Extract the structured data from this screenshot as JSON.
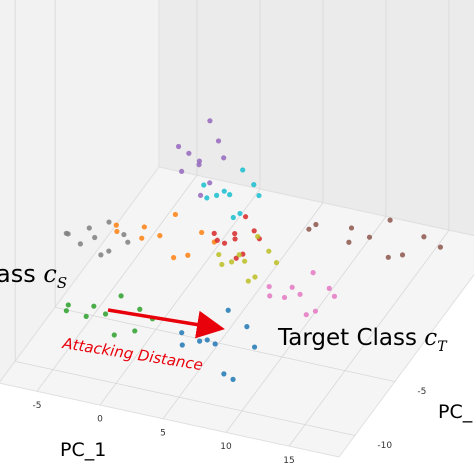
{
  "chart_data": {
    "type": "scatter3d",
    "xlabel": "PC_1",
    "ylabel": "PC_",
    "xlim": [
      -8,
      19
    ],
    "ylim": [
      -12,
      8
    ],
    "zlim": [
      0,
      10
    ],
    "xticks": [
      -5,
      0,
      5,
      10,
      15
    ],
    "yticks": [
      -10,
      -5
    ],
    "grid": true,
    "annotations": {
      "source_text": "ass",
      "source_symbol": "c",
      "source_sub": "S",
      "target_text": "Target Class",
      "target_symbol": "c",
      "target_sub": "T",
      "arrow_text": "Attacking Distance",
      "arrow_color": "#e8000b"
    },
    "series": [
      {
        "color": "#9467bd",
        "x": [
          -1,
          0.2,
          -2.4,
          -0.4,
          -1.6,
          0.8,
          -2.6,
          -0.8,
          -1.2,
          0.2
        ],
        "y": [
          2,
          2.5,
          1.6,
          1.2,
          2.9,
          2.2,
          2.3,
          3,
          1,
          1.4
        ],
        "z": [
          3.0,
          3.6,
          3.5,
          2.2,
          2.5,
          3.2,
          2.4,
          4.0,
          3.6,
          2.6
        ]
      },
      {
        "color": "#17becf",
        "x": [
          1.4,
          3.0,
          -0.4,
          2.2,
          0.4,
          3.6,
          -0.6,
          1.8,
          1.0,
          2.6
        ],
        "y": [
          2,
          2.5,
          1.6,
          1.2,
          2.9,
          2.2,
          2.3,
          3,
          1,
          1.4
        ],
        "z": [
          2.1,
          2.4,
          2.4,
          1.7,
          1.8,
          2.2,
          1.7,
          2.6,
          2.4,
          1.8
        ]
      },
      {
        "color": "#8c564b",
        "x": [
          12.5,
          16.5,
          8.5,
          14.5,
          10.5,
          18,
          7.5,
          13.5,
          11.5,
          15.5
        ],
        "y": [
          2,
          2.5,
          1.6,
          1.2,
          2.9,
          2.2,
          2.3,
          3,
          1,
          1.4
        ],
        "z": [
          1.7,
          1.9,
          1.9,
          1.5,
          1.5,
          1.8,
          1.4,
          2.0,
          1.8,
          1.6
        ]
      },
      {
        "color": "#7f7f7f",
        "x": [
          -5.5,
          -3.5,
          -7.5,
          -4.5,
          -6.5,
          -3.0,
          -7.8,
          -5.0,
          -6.0,
          -4.0
        ],
        "y": [
          -4,
          -3.5,
          -4.4,
          -4.8,
          -3.1,
          -3.8,
          -3.7,
          -3,
          -5,
          -4.6
        ],
        "z": [
          2.2,
          2.3,
          2.3,
          2.0,
          2.1,
          2.2,
          2.0,
          2.4,
          2.3,
          2.1
        ]
      },
      {
        "color": "#ff7f0e",
        "x": [
          -1.6,
          1.4,
          -4.8,
          0,
          -3.4,
          2.6,
          -5.2,
          -1,
          -2.4,
          1
        ],
        "y": [
          -2,
          -1.5,
          -2.4,
          -2.8,
          -1.1,
          -1.8,
          -1.7,
          -1,
          -3,
          -2.6
        ],
        "z": [
          1.9,
          2.1,
          2.1,
          1.6,
          1.7,
          2.0,
          1.6,
          2.3,
          2.1,
          1.7
        ]
      },
      {
        "color": "#d62728",
        "x": [
          3.1,
          4.3,
          1.7,
          3.7,
          2.5,
          4.9,
          1.5,
          3.3,
          2.9,
          4.1
        ],
        "y": [
          0,
          0.5,
          -0.4,
          -0.8,
          0.9,
          0.2,
          0.3,
          1,
          -1,
          -0.6
        ],
        "z": [
          1.5,
          1.7,
          1.7,
          1.2,
          1.3,
          1.6,
          1.2,
          1.9,
          1.7,
          1.3
        ]
      },
      {
        "color": "#bcbd22",
        "x": [
          6.4,
          8.0,
          4.6,
          7.2,
          5.4,
          8.8,
          4.4,
          6.8,
          6.0,
          7.6
        ],
        "y": [
          -4,
          -3.5,
          -4.4,
          -4.8,
          -3.1,
          -3.8,
          -3.7,
          -3,
          -5,
          -4.6
        ],
        "z": [
          2.5,
          2.8,
          2.7,
          2.2,
          2.3,
          2.6,
          2.1,
          3.0,
          2.8,
          2.3
        ]
      },
      {
        "color": "#e377c2",
        "x": [
          10.8,
          12.8,
          8.6,
          11.8,
          9.6,
          13.4,
          8.2,
          11.2,
          10.2,
          12.4
        ],
        "y": [
          -4,
          -3.5,
          -4.4,
          -4.8,
          -3.1,
          -3.8,
          -3.7,
          -3,
          -5,
          -4.6
        ],
        "z": [
          1.8,
          2.0,
          2.0,
          1.5,
          1.6,
          1.9,
          1.4,
          2.2,
          2.0,
          1.6
        ]
      },
      {
        "color": "#2ca02c",
        "x": [
          -2.1,
          0.3,
          -4.8,
          -0.9,
          -3.6,
          1.5,
          -5.4,
          -1.5,
          -3.0,
          0.6
        ],
        "y": [
          -8,
          -7.5,
          -8.4,
          -8.8,
          -7.1,
          -7.8,
          -7.7,
          -7,
          -9,
          -8.6
        ],
        "z": [
          1.4,
          1.6,
          1.6,
          1.1,
          1.2,
          1.5,
          1.1,
          1.7,
          1.6,
          1.3
        ]
      },
      {
        "color": "#1f77b4",
        "x": [
          6.6,
          8.8,
          4.2,
          7.8,
          5.4,
          9.6,
          3.8,
          7.0,
          6.0,
          8.4
        ],
        "y": [
          -8,
          -7.5,
          -8.4,
          -8.8,
          -7.1,
          -7.8,
          -7.7,
          -7,
          -9,
          -8.6
        ],
        "z": [
          1.2,
          1.8,
          1.5,
          0.6,
          0.9,
          1.3,
          0.8,
          2.0,
          1.6,
          0.4
        ]
      }
    ]
  }
}
